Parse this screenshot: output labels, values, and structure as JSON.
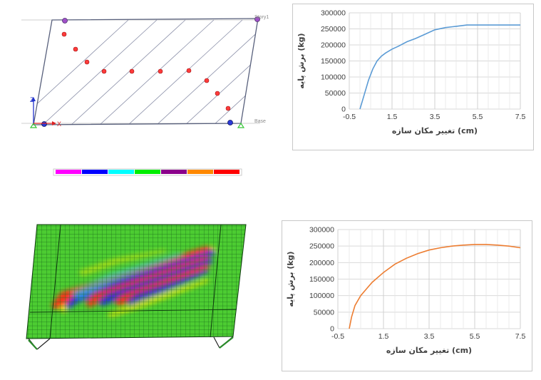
{
  "frame_model": {
    "story_label": "Story1",
    "base_label": "Base",
    "axis_z": "Z",
    "axis_x": "X",
    "legend_colors": [
      "#ff00ff",
      "#0000ff",
      "#00ffff",
      "#00ee00",
      "#8b008b",
      "#ff8800",
      "#ff0000"
    ]
  },
  "charts": {
    "top": {
      "title": "",
      "xlabel": "تغییر مکان سازه (cm)",
      "ylabel": "برش پایه (kg)",
      "line_color": "#5b9bd5"
    },
    "bottom": {
      "title": "",
      "xlabel": "تغییر مکان سازه (cm)",
      "ylabel": "برش پایه (kg)",
      "line_color": "#ed7d31"
    }
  },
  "chart_data": [
    {
      "type": "line",
      "xlabel": "تغییر مکان سازه (cm)",
      "ylabel": "برش پایه (kg)",
      "xlim": [
        -0.5,
        7.5
      ],
      "ylim": [
        0,
        300000
      ],
      "xticks": [
        "-0.5",
        "1.5",
        "3.5",
        "5.5",
        "7.5"
      ],
      "yticks": [
        "0",
        "50000",
        "100000",
        "150000",
        "200000",
        "250000",
        "300000"
      ],
      "grid": true,
      "series": [
        {
          "x": [
            0,
            0.2,
            0.4,
            0.6,
            0.8,
            1.0,
            1.2,
            1.5,
            1.8,
            2.2,
            2.6,
            3.0,
            3.5,
            4.0,
            4.5,
            5.0,
            5.5,
            6.0,
            6.5,
            7.0,
            7.5
          ],
          "y": [
            0,
            45000,
            90000,
            125000,
            150000,
            165000,
            175000,
            187000,
            196000,
            210000,
            220000,
            232000,
            247000,
            254000,
            258000,
            262000,
            262000,
            262000,
            262000,
            262000,
            262000
          ]
        }
      ]
    },
    {
      "type": "line",
      "xlabel": "تغییر مکان سازه (cm)",
      "ylabel": "برش پایه (kg)",
      "xlim": [
        -0.5,
        7.5
      ],
      "ylim": [
        0,
        300000
      ],
      "xticks": [
        "-0.5",
        "1.5",
        "3.5",
        "5.5",
        "7.5"
      ],
      "yticks": [
        "0",
        "50000",
        "100000",
        "150000",
        "200000",
        "250000",
        "300000"
      ],
      "grid": true,
      "series": [
        {
          "x": [
            0,
            0.1,
            0.25,
            0.5,
            0.75,
            1.0,
            1.5,
            2.0,
            2.5,
            3.0,
            3.5,
            4.0,
            4.5,
            5.0,
            5.5,
            6.0,
            6.5,
            7.0,
            7.5
          ],
          "y": [
            0,
            35000,
            70000,
            100000,
            120000,
            140000,
            170000,
            195000,
            213000,
            227000,
            238000,
            245000,
            250000,
            253000,
            255000,
            255000,
            253000,
            250000,
            245000
          ]
        }
      ]
    }
  ]
}
